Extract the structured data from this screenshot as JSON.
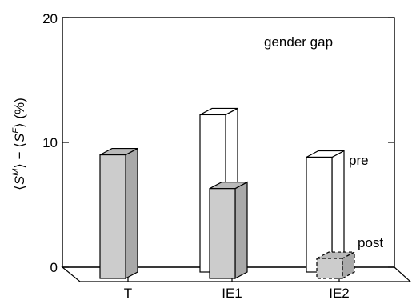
{
  "chart_data": {
    "type": "bar",
    "title": "gender gap",
    "ylabel": {
      "open_bracket": "⟨",
      "s_letter": "S",
      "sup_male": "M",
      "close_bracket": "⟩",
      "minus": " − ",
      "sup_female": "F",
      "unit": " (%)"
    },
    "xlabel": "",
    "categories": [
      "T",
      "IE1",
      "IE2"
    ],
    "series": [
      {
        "name": "pre",
        "values": [
          null,
          12.6,
          9.2
        ],
        "color": "#ffffff",
        "style": "solid"
      },
      {
        "name": "post",
        "values": [
          9.9,
          7.2,
          1.6
        ],
        "color": "#cccccc",
        "style": "solid-dashed-for-IE2"
      }
    ],
    "ylim": [
      0,
      20
    ],
    "yticks": [
      "0",
      "10",
      "20"
    ],
    "grid": false,
    "annotations": {
      "pre_label": "pre",
      "post_label": "post"
    },
    "colors": {
      "axis": "#000000",
      "post_fill": "#cccccc",
      "post_side": "#a9a9a9",
      "post_top": "#b9b9b9",
      "pre_fill": "#ffffff"
    }
  }
}
